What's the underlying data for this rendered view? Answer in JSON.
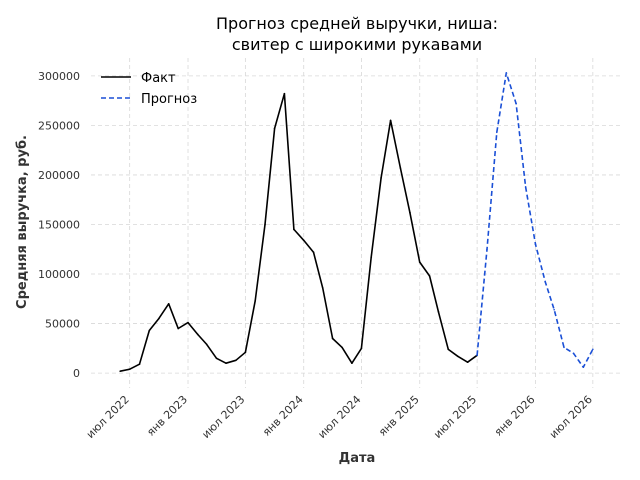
{
  "chart_data": {
    "type": "line",
    "title_lines": [
      "Прогноз средней выручки, ниша:",
      "свитер с широкими рукавами"
    ],
    "xlabel": "Дата",
    "ylabel": "Средняя выручка, руб.",
    "x_range": [
      "2022-03-01",
      "2026-10-01"
    ],
    "ylim": [
      -15000,
      318000
    ],
    "y_ticks": [
      0,
      50000,
      100000,
      150000,
      200000,
      250000,
      300000
    ],
    "y_tick_labels": [
      "0",
      "50000",
      "100000",
      "150000",
      "200000",
      "250000",
      "300000"
    ],
    "x_ticks": [
      {
        "date": "2022-07-01",
        "label": "июл 2022"
      },
      {
        "date": "2023-01-01",
        "label": "янв 2023"
      },
      {
        "date": "2023-07-01",
        "label": "июл 2023"
      },
      {
        "date": "2024-01-01",
        "label": "янв 2024"
      },
      {
        "date": "2024-07-01",
        "label": "июл 2024"
      },
      {
        "date": "2025-01-01",
        "label": "янв 2025"
      },
      {
        "date": "2025-07-01",
        "label": "июл 2025"
      },
      {
        "date": "2026-01-01",
        "label": "янв 2026"
      },
      {
        "date": "2026-07-01",
        "label": "июл 2026"
      }
    ],
    "grid": true,
    "legend_position": "top-left",
    "series": [
      {
        "name": "Факт",
        "style": "solid",
        "color": "#000000",
        "points": [
          [
            "2022-06-01",
            2000
          ],
          [
            "2022-07-01",
            4000
          ],
          [
            "2022-08-01",
            9000
          ],
          [
            "2022-09-01",
            43000
          ],
          [
            "2022-10-01",
            55000
          ],
          [
            "2022-11-01",
            70000
          ],
          [
            "2022-12-01",
            45000
          ],
          [
            "2023-01-01",
            51000
          ],
          [
            "2023-02-01",
            39000
          ],
          [
            "2023-03-01",
            29000
          ],
          [
            "2023-04-01",
            15000
          ],
          [
            "2023-05-01",
            10000
          ],
          [
            "2023-06-01",
            13000
          ],
          [
            "2023-07-01",
            21000
          ],
          [
            "2023-08-01",
            73000
          ],
          [
            "2023-09-01",
            150000
          ],
          [
            "2023-10-01",
            247000
          ],
          [
            "2023-11-01",
            282000
          ],
          [
            "2023-12-01",
            145000
          ],
          [
            "2024-01-01",
            134000
          ],
          [
            "2024-02-01",
            122000
          ],
          [
            "2024-03-01",
            86000
          ],
          [
            "2024-04-01",
            35000
          ],
          [
            "2024-05-01",
            26000
          ],
          [
            "2024-06-01",
            10000
          ],
          [
            "2024-07-01",
            25000
          ],
          [
            "2024-08-01",
            117000
          ],
          [
            "2024-09-01",
            197000
          ],
          [
            "2024-10-01",
            255000
          ],
          [
            "2024-11-01",
            207000
          ],
          [
            "2024-12-01",
            162000
          ],
          [
            "2025-01-01",
            112000
          ],
          [
            "2025-02-01",
            98000
          ],
          [
            "2025-03-01",
            62000
          ],
          [
            "2025-04-01",
            24000
          ],
          [
            "2025-05-01",
            17000
          ],
          [
            "2025-06-01",
            11000
          ],
          [
            "2025-07-01",
            18000
          ]
        ]
      },
      {
        "name": "Прогноз",
        "style": "dashed",
        "color": "#1a4fd6",
        "points": [
          [
            "2025-07-01",
            18000
          ],
          [
            "2025-08-01",
            125000
          ],
          [
            "2025-09-01",
            243000
          ],
          [
            "2025-10-01",
            303000
          ],
          [
            "2025-11-01",
            272000
          ],
          [
            "2025-12-01",
            188000
          ],
          [
            "2026-01-01",
            130000
          ],
          [
            "2026-02-01",
            92000
          ],
          [
            "2026-03-01",
            64000
          ],
          [
            "2026-04-01",
            26000
          ],
          [
            "2026-05-01",
            20000
          ],
          [
            "2026-06-01",
            6000
          ],
          [
            "2026-07-01",
            24000
          ]
        ]
      }
    ]
  }
}
